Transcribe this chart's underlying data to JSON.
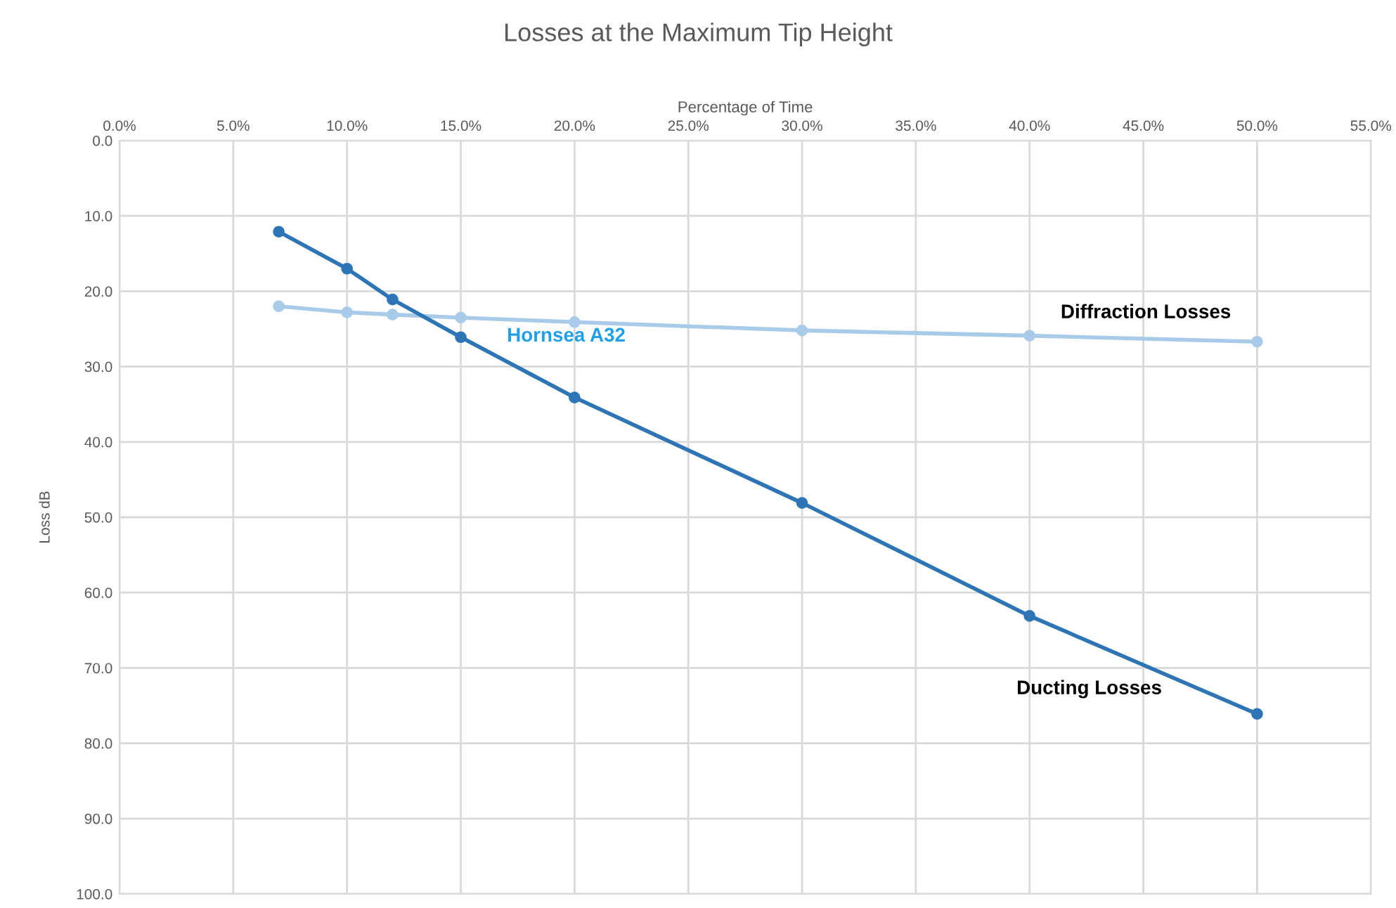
{
  "chart_data": {
    "type": "line",
    "title": "Losses at the Maximum Tip Height",
    "xlabel": "Percentage of Time",
    "ylabel": "Loss dB",
    "x": [
      7,
      10,
      12,
      15,
      20,
      30,
      40,
      50
    ],
    "series": [
      {
        "name": "Diffraction Losses",
        "color": "#a9cbea",
        "values": [
          22.0,
          22.8,
          23.1,
          23.5,
          24.1,
          25.2,
          25.9,
          26.7
        ]
      },
      {
        "name": "Ducting Losses",
        "color": "#2e75b6",
        "values": [
          12.1,
          17.0,
          21.1,
          26.1,
          34.1,
          48.1,
          63.1,
          76.1
        ]
      }
    ],
    "annotations": [
      "Hornsea A32"
    ],
    "xlim": [
      0,
      55
    ],
    "xticks": [
      {
        "value": 0,
        "label": "0.0%"
      },
      {
        "value": 5,
        "label": "5.0%"
      },
      {
        "value": 10,
        "label": "10.0%"
      },
      {
        "value": 15,
        "label": "15.0%"
      },
      {
        "value": 20,
        "label": "20.0%"
      },
      {
        "value": 25,
        "label": "25.0%"
      },
      {
        "value": 30,
        "label": "30.0%"
      },
      {
        "value": 35,
        "label": "35.0%"
      },
      {
        "value": 40,
        "label": "40.0%"
      },
      {
        "value": 45,
        "label": "45.0%"
      },
      {
        "value": 50,
        "label": "50.0%"
      },
      {
        "value": 55,
        "label": "55.0%"
      }
    ],
    "ylim": [
      100,
      0
    ],
    "yticks": [
      {
        "value": 0,
        "label": "0.0"
      },
      {
        "value": 10,
        "label": "10.0"
      },
      {
        "value": 20,
        "label": "20.0"
      },
      {
        "value": 30,
        "label": "30.0"
      },
      {
        "value": 40,
        "label": "40.0"
      },
      {
        "value": 50,
        "label": "50.0"
      },
      {
        "value": 60,
        "label": "60.0"
      },
      {
        "value": 70,
        "label": "70.0"
      },
      {
        "value": 80,
        "label": "80.0"
      },
      {
        "value": 90,
        "label": "90.0"
      },
      {
        "value": 100,
        "label": "100.0"
      }
    ],
    "grid": true,
    "legend": false,
    "marker": "circle",
    "line_style": "solid"
  }
}
